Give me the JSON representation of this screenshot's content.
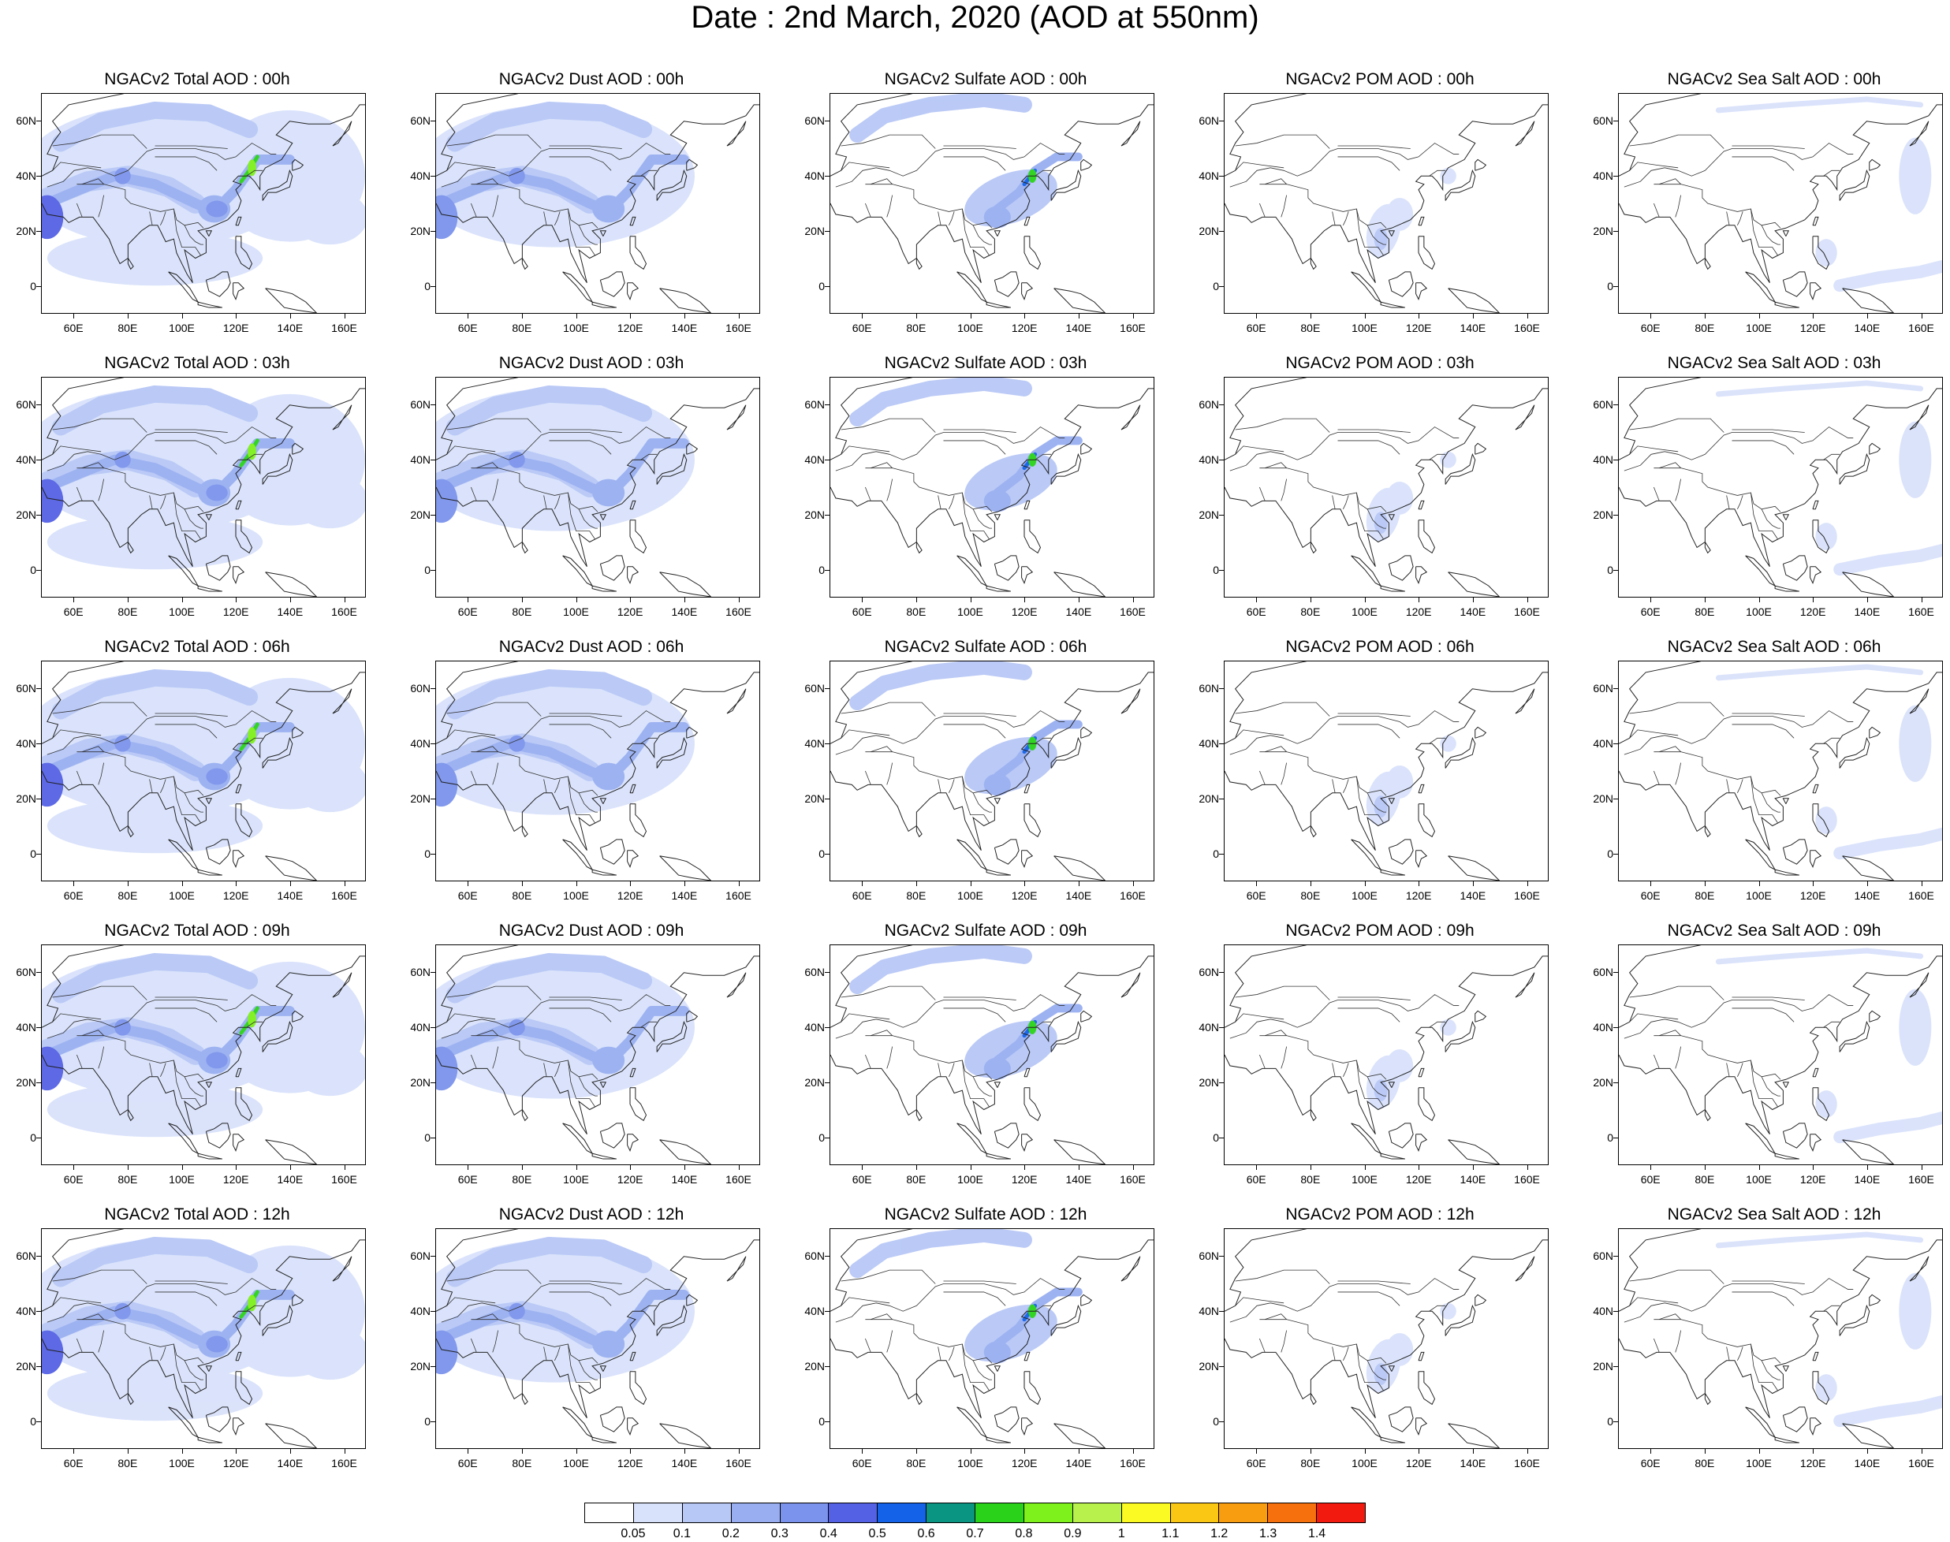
{
  "title": "Date : 2nd March, 2020 (AOD at 550nm)",
  "grid": {
    "rows": [
      "00h",
      "03h",
      "06h",
      "09h",
      "12h"
    ],
    "columns": [
      "Total",
      "Dust",
      "Sulfate",
      "POM",
      "Sea Salt"
    ]
  },
  "panels": [
    [
      "NGACv2 Total AOD : 00h",
      "NGACv2 Dust AOD : 00h",
      "NGACv2 Sulfate AOD : 00h",
      "NGACv2 POM AOD : 00h",
      "NGACv2 Sea Salt AOD : 00h"
    ],
    [
      "NGACv2 Total AOD : 03h",
      "NGACv2 Dust AOD : 03h",
      "NGACv2 Sulfate AOD : 03h",
      "NGACv2 POM AOD : 03h",
      "NGACv2 Sea Salt AOD : 03h"
    ],
    [
      "NGACv2 Total AOD : 06h",
      "NGACv2 Dust AOD : 06h",
      "NGACv2 Sulfate AOD : 06h",
      "NGACv2 POM AOD : 06h",
      "NGACv2 Sea Salt AOD : 06h"
    ],
    [
      "NGACv2 Total AOD : 09h",
      "NGACv2 Dust AOD : 09h",
      "NGACv2 Sulfate AOD : 09h",
      "NGACv2 POM AOD : 09h",
      "NGACv2 Sea Salt  AOD : 09h"
    ],
    [
      "NGACv2 Total AOD  : 12h",
      "NGACv2 Dust AOD : 12h",
      "NGACv2 Sulfate AOD : 12h",
      "NGACv2 POM  AOD : 12h",
      "NGACv2 Sea Salt  AOD : 12h"
    ]
  ],
  "map": {
    "lon_range": [
      48,
      168
    ],
    "lat_range": [
      -10,
      70
    ],
    "lat_labels": [
      {
        "value": 60,
        "text": "60N"
      },
      {
        "value": 40,
        "text": "40N"
      },
      {
        "value": 20,
        "text": "20N"
      },
      {
        "value": 0,
        "text": "0"
      }
    ],
    "lon_labels": [
      {
        "value": 60,
        "text": "60E"
      },
      {
        "value": 80,
        "text": "80E"
      },
      {
        "value": 100,
        "text": "100E"
      },
      {
        "value": 120,
        "text": "120E"
      },
      {
        "value": 140,
        "text": "140E"
      },
      {
        "value": 160,
        "text": "160E"
      }
    ]
  },
  "colorbar": {
    "labels": [
      "0.05",
      "0.1",
      "0.2",
      "0.3",
      "0.4",
      "0.5",
      "0.6",
      "0.7",
      "0.8",
      "0.9",
      "1",
      "1.1",
      "1.2",
      "1.3",
      "1.4"
    ],
    "colors": [
      "#ffffff",
      "#d9e2fb",
      "#b7c7f6",
      "#98aef1",
      "#7b93ec",
      "#5561e4",
      "#1462e8",
      "#0a9482",
      "#2ad21a",
      "#7ef01c",
      "#b8f04c",
      "#fbfb23",
      "#fbc715",
      "#f99d10",
      "#f6700e",
      "#f2190e"
    ]
  }
}
